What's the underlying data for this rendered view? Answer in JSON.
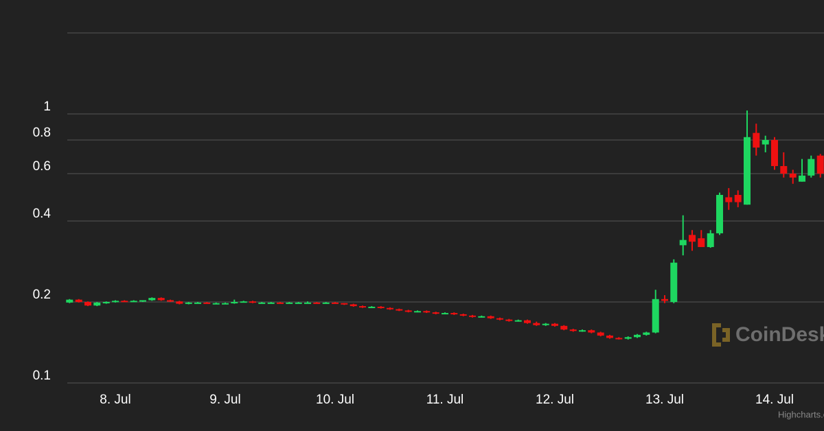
{
  "chart_data": {
    "type": "candlestick",
    "y_scale": "log",
    "grid": true,
    "up_color": "#1ed760",
    "down_color": "#ee1111",
    "watermark": "CoinDesk",
    "credits": "Highcharts.com",
    "xlim": [
      7.5625,
      14.45
    ],
    "ylim": [
      0.1,
      2
    ],
    "yticks": [
      0.1,
      0.2,
      0.4,
      0.6,
      0.8,
      1
    ],
    "xticks": [
      {
        "value": 8,
        "label": "8. Jul"
      },
      {
        "value": 9,
        "label": "9. Jul"
      },
      {
        "value": 10,
        "label": "10. Jul"
      },
      {
        "value": 11,
        "label": "11. Jul"
      },
      {
        "value": 12,
        "label": "12. Jul"
      },
      {
        "value": 13,
        "label": "13. Jul"
      },
      {
        "value": 14,
        "label": "14. Jul"
      }
    ],
    "x": [
      7.583,
      7.667,
      7.75,
      7.833,
      7.917,
      8,
      8.083,
      8.167,
      8.25,
      8.333,
      8.417,
      8.5,
      8.583,
      8.667,
      8.75,
      8.833,
      8.917,
      9,
      9.083,
      9.167,
      9.25,
      9.333,
      9.417,
      9.5,
      9.583,
      9.667,
      9.75,
      9.833,
      9.917,
      10,
      10.083,
      10.167,
      10.25,
      10.333,
      10.417,
      10.5,
      10.583,
      10.667,
      10.75,
      10.833,
      10.917,
      11,
      11.083,
      11.167,
      11.25,
      11.333,
      11.417,
      11.5,
      11.583,
      11.667,
      11.75,
      11.833,
      11.917,
      12,
      12.083,
      12.167,
      12.25,
      12.333,
      12.417,
      12.5,
      12.583,
      12.667,
      12.75,
      12.833,
      12.917,
      13,
      13.083,
      13.167,
      13.25,
      13.333,
      13.417,
      13.5,
      13.583,
      13.667,
      13.75,
      13.833,
      13.917,
      14,
      14.083,
      14.167,
      14.25,
      14.333,
      14.417
    ],
    "open": [
      0.199,
      0.204,
      0.2,
      0.194,
      0.199,
      0.2,
      0.202,
      0.201,
      0.201,
      0.203,
      0.207,
      0.203,
      0.201,
      0.197,
      0.199,
      0.199,
      0.198,
      0.198,
      0.198,
      0.2,
      0.201,
      0.199,
      0.199,
      0.199,
      0.198,
      0.199,
      0.199,
      0.199,
      0.198,
      0.199,
      0.198,
      0.196,
      0.193,
      0.191,
      0.192,
      0.19,
      0.188,
      0.186,
      0.184,
      0.185,
      0.183,
      0.181,
      0.182,
      0.18,
      0.178,
      0.176,
      0.177,
      0.174,
      0.172,
      0.17,
      0.171,
      0.167,
      0.164,
      0.166,
      0.163,
      0.158,
      0.156,
      0.157,
      0.154,
      0.15,
      0.147,
      0.146,
      0.148,
      0.151,
      0.154,
      0.205,
      0.2,
      0.325,
      0.355,
      0.345,
      0.32,
      0.36,
      0.49,
      0.5,
      0.46,
      0.85,
      0.77,
      0.8,
      0.64,
      0.6,
      0.56,
      0.59,
      0.7
    ],
    "high": [
      0.205,
      0.205,
      0.201,
      0.2,
      0.201,
      0.203,
      0.203,
      0.203,
      0.203,
      0.208,
      0.208,
      0.204,
      0.202,
      0.2,
      0.2,
      0.2,
      0.199,
      0.199,
      0.204,
      0.202,
      0.202,
      0.2,
      0.2,
      0.2,
      0.2,
      0.2,
      0.201,
      0.2,
      0.2,
      0.2,
      0.198,
      0.197,
      0.194,
      0.193,
      0.193,
      0.191,
      0.189,
      0.187,
      0.186,
      0.186,
      0.184,
      0.183,
      0.183,
      0.181,
      0.179,
      0.178,
      0.178,
      0.175,
      0.173,
      0.172,
      0.172,
      0.169,
      0.167,
      0.167,
      0.164,
      0.159,
      0.158,
      0.158,
      0.155,
      0.151,
      0.148,
      0.149,
      0.152,
      0.155,
      0.222,
      0.212,
      0.288,
      0.42,
      0.37,
      0.37,
      0.37,
      0.51,
      0.53,
      0.52,
      1.03,
      0.92,
      0.83,
      0.82,
      0.72,
      0.62,
      0.68,
      0.7,
      0.71
    ],
    "low": [
      0.198,
      0.199,
      0.193,
      0.193,
      0.197,
      0.199,
      0.2,
      0.2,
      0.2,
      0.202,
      0.202,
      0.2,
      0.196,
      0.196,
      0.198,
      0.197,
      0.197,
      0.197,
      0.197,
      0.199,
      0.198,
      0.198,
      0.198,
      0.197,
      0.197,
      0.198,
      0.198,
      0.197,
      0.197,
      0.197,
      0.195,
      0.192,
      0.19,
      0.19,
      0.189,
      0.187,
      0.185,
      0.183,
      0.183,
      0.182,
      0.18,
      0.18,
      0.179,
      0.177,
      0.175,
      0.175,
      0.173,
      0.171,
      0.169,
      0.169,
      0.166,
      0.163,
      0.163,
      0.162,
      0.157,
      0.155,
      0.155,
      0.153,
      0.149,
      0.146,
      0.145,
      0.145,
      0.147,
      0.15,
      0.153,
      0.198,
      0.198,
      0.298,
      0.31,
      0.32,
      0.318,
      0.355,
      0.44,
      0.45,
      0.46,
      0.7,
      0.72,
      0.62,
      0.58,
      0.55,
      0.56,
      0.58,
      0.58
    ],
    "close": [
      0.204,
      0.2,
      0.194,
      0.199,
      0.2,
      0.202,
      0.201,
      0.202,
      0.203,
      0.207,
      0.203,
      0.201,
      0.197,
      0.199,
      0.199,
      0.198,
      0.198,
      0.198,
      0.2,
      0.201,
      0.199,
      0.199,
      0.199,
      0.198,
      0.199,
      0.199,
      0.199,
      0.198,
      0.199,
      0.198,
      0.196,
      0.193,
      0.191,
      0.192,
      0.19,
      0.188,
      0.186,
      0.184,
      0.185,
      0.183,
      0.181,
      0.182,
      0.18,
      0.178,
      0.176,
      0.177,
      0.174,
      0.172,
      0.17,
      0.171,
      0.167,
      0.164,
      0.166,
      0.163,
      0.158,
      0.156,
      0.157,
      0.154,
      0.15,
      0.147,
      0.146,
      0.148,
      0.151,
      0.154,
      0.205,
      0.202,
      0.28,
      0.34,
      0.335,
      0.32,
      0.36,
      0.5,
      0.47,
      0.47,
      0.82,
      0.75,
      0.8,
      0.64,
      0.6,
      0.58,
      0.59,
      0.68,
      0.6
    ]
  }
}
